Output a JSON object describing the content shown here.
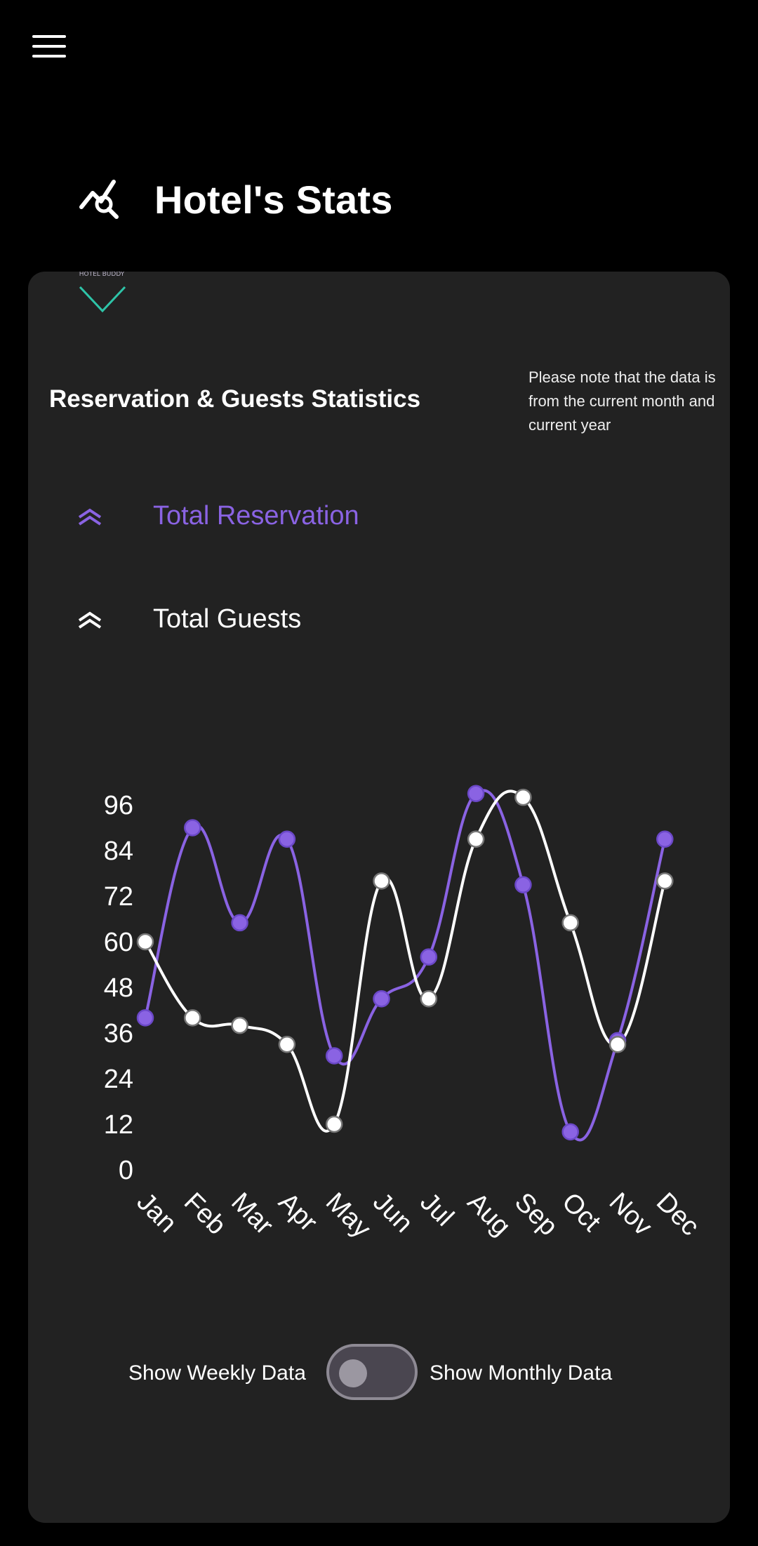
{
  "header": {
    "title": "Hotel's Stats",
    "icon": "analytics-icon"
  },
  "menu": {
    "icon": "hamburger-menu-icon"
  },
  "card": {
    "logo_text": "HOTEL BUDDY",
    "section_title": "Reservation & Guests Statistics",
    "note": "Please note that the data is from the current month and current year"
  },
  "legend": {
    "reservation_label": "Total Reservation",
    "guests_label": "Total Guests",
    "reservation_color": "#8a63e3",
    "guests_color": "#ffffff"
  },
  "toggle": {
    "left_label": "Show Weekly Data",
    "right_label": "Show Monthly Data",
    "state": "weekly"
  },
  "chart_data": {
    "type": "line",
    "categories": [
      "Jan",
      "Feb",
      "Mar",
      "Apr",
      "May",
      "Jun",
      "Jul",
      "Aug",
      "Sep",
      "Oct",
      "Nov",
      "Dec"
    ],
    "ylim": [
      0,
      96
    ],
    "yticks": [
      96,
      84,
      72,
      60,
      48,
      36,
      24,
      12,
      0
    ],
    "series": [
      {
        "name": "Total Reservation",
        "color": "#8a63e3",
        "values": [
          40,
          90,
          65,
          87,
          30,
          45,
          56,
          99,
          75,
          10,
          34,
          87
        ]
      },
      {
        "name": "Total Guests",
        "color": "#ffffff",
        "values": [
          60,
          40,
          38,
          33,
          12,
          76,
          45,
          87,
          98,
          65,
          33,
          76
        ]
      }
    ]
  }
}
